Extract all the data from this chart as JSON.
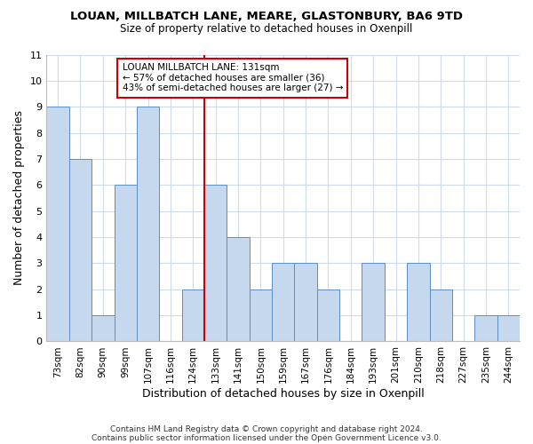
{
  "title": "LOUAN, MILLBATCH LANE, MEARE, GLASTONBURY, BA6 9TD",
  "subtitle": "Size of property relative to detached houses in Oxenpill",
  "xlabel": "Distribution of detached houses by size in Oxenpill",
  "ylabel": "Number of detached properties",
  "categories": [
    "73sqm",
    "82sqm",
    "90sqm",
    "99sqm",
    "107sqm",
    "116sqm",
    "124sqm",
    "133sqm",
    "141sqm",
    "150sqm",
    "159sqm",
    "167sqm",
    "176sqm",
    "184sqm",
    "193sqm",
    "201sqm",
    "210sqm",
    "218sqm",
    "227sqm",
    "235sqm",
    "244sqm"
  ],
  "values": [
    9,
    7,
    1,
    6,
    9,
    0,
    2,
    6,
    4,
    2,
    3,
    3,
    2,
    0,
    3,
    0,
    3,
    2,
    0,
    1,
    1
  ],
  "bar_color": "#c5d8ed",
  "bar_edge_color": "#5b8ec4",
  "highlight_index": 7,
  "highlight_line_color": "#cc0000",
  "ylim": [
    0,
    11
  ],
  "yticks": [
    0,
    1,
    2,
    3,
    4,
    5,
    6,
    7,
    8,
    9,
    10,
    11
  ],
  "annotation_title": "LOUAN MILLBATCH LANE: 131sqm",
  "annotation_line1": "← 57% of detached houses are smaller (36)",
  "annotation_line2": "43% of semi-detached houses are larger (27) →",
  "annotation_box_color": "#ffffff",
  "annotation_box_edge": "#cc0000",
  "footnote1": "Contains HM Land Registry data © Crown copyright and database right 2024.",
  "footnote2": "Contains public sector information licensed under the Open Government Licence v3.0.",
  "grid_color": "#d0dae8",
  "background_color": "#ffffff"
}
